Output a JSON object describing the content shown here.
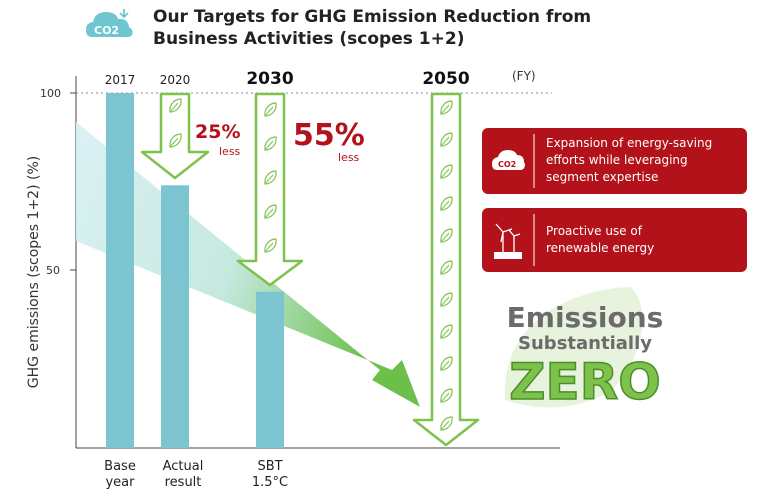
{
  "header": {
    "co2_badge": "CO2",
    "title_line1": "Our Targets for GHG Emission Reduction from",
    "title_line2": "Business Activities (scopes 1+2)"
  },
  "chart_data": {
    "type": "bar",
    "ylabel": "GHG emissions (scopes 1+2)  (%)",
    "x_unit": "(FY)",
    "ylim": [
      0,
      100
    ],
    "yticks": [
      "100",
      "50"
    ],
    "categories": [
      "Base year",
      "Actual result",
      "SBT 1.5°C"
    ],
    "category_lines": [
      [
        "Base",
        "year"
      ],
      [
        "Actual",
        "result"
      ],
      [
        "SBT",
        "1.5°C"
      ]
    ],
    "years": [
      "2017",
      "2020",
      "2030"
    ],
    "values": [
      100,
      74,
      44
    ],
    "target": {
      "year": "2050",
      "label_line1": "Emissions",
      "label_line2": "Substantially",
      "label_line3": "ZERO"
    },
    "reductions": [
      {
        "percent": "25%",
        "word": "less"
      },
      {
        "percent": "55%",
        "word": "less"
      }
    ],
    "colors": {
      "bar": "#7cc4cf",
      "arrow": "#7dc24a",
      "accent": "#b3121a"
    }
  },
  "measures": [
    {
      "text": "Expansion of energy-saving efforts while leveraging segment expertise",
      "lines": [
        "Expansion of energy-saving",
        "efforts while leveraging",
        "segment expertise"
      ],
      "icon": "co2-icon"
    },
    {
      "text": "Proactive use of renewable energy",
      "lines": [
        "Proactive use of",
        "renewable energy"
      ],
      "icon": "wind-solar-icon"
    }
  ]
}
